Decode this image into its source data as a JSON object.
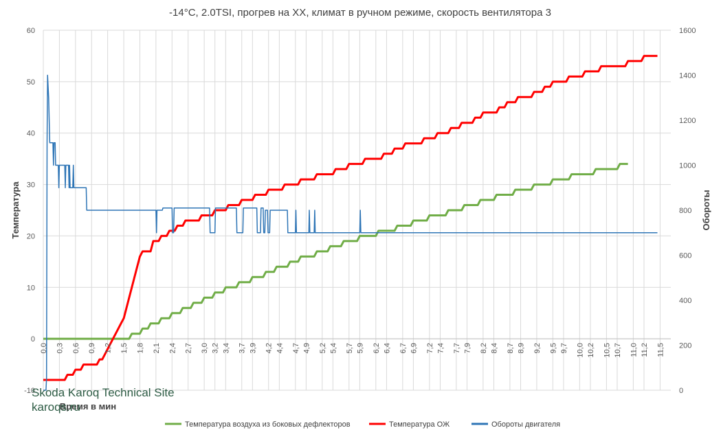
{
  "chart_data": {
    "type": "line",
    "title": "-14°C, 2.0TSI, прогрев на ХХ, климат в ручном режиме, скорость вентилятора 3",
    "xlabel": "Время в мин",
    "ylabel": "Температура",
    "y2label": "Обороты",
    "xlim": [
      0,
      11.7
    ],
    "ylim": [
      -10,
      60
    ],
    "y2lim": [
      0,
      1600
    ],
    "grid": true,
    "legend_position": "bottom",
    "x_ticks": [
      "0,0",
      "0,3",
      "0,5",
      "0,7",
      "0,9",
      "1,2",
      "1,4",
      "1,6",
      "1,9",
      "2,1",
      "2,3",
      "2,5",
      "2,7",
      "2,9",
      "3,1",
      "3,3",
      "3,5",
      "3,7",
      "3,9",
      "4,1",
      "4,3",
      "4,5",
      "4,7",
      "4,9",
      "5,1",
      "5,3",
      "5,5",
      "5,7",
      "5,9",
      "6,1",
      "6,3",
      "6,5",
      "6,7",
      "6,9",
      "7,1",
      "7,3",
      "7,5",
      "7,7",
      "7,9",
      "8,1",
      "8,3",
      "8,5",
      "8,7",
      "8,9",
      "9,1",
      "9,3",
      "9,5",
      "9,7",
      "9,9",
      "10,1",
      "10,3",
      "10,5",
      "10,7",
      "10,9",
      "11,1",
      "11,3",
      "11,5"
    ],
    "x_tick_labels": [
      "0,0",
      "0,3",
      "0,6",
      "0,9",
      "1,2",
      "1,5",
      "1,8",
      "2,1",
      "2,4",
      "2,7",
      "3,0",
      "3,2",
      "3,4",
      "3,7",
      "3,9",
      "4,2",
      "4,4",
      "4,7",
      "4,9",
      "5,2",
      "5,4",
      "5,7",
      "5,9",
      "6,2",
      "6,4",
      "6,7",
      "6,9",
      "7,2",
      "7,4",
      "7,7",
      "7,9",
      "8,2",
      "8,4",
      "8,7",
      "8,9",
      "9,2",
      "9,5",
      "9,7",
      "10,0",
      "10,2",
      "10,5",
      "10,7",
      "11,0",
      "11,2",
      "11,5"
    ],
    "x_tick_values": [
      0.0,
      0.3,
      0.6,
      0.9,
      1.2,
      1.5,
      1.8,
      2.1,
      2.4,
      2.7,
      3.0,
      3.2,
      3.4,
      3.7,
      3.9,
      4.2,
      4.4,
      4.7,
      4.9,
      5.2,
      5.4,
      5.7,
      5.9,
      6.2,
      6.4,
      6.7,
      6.9,
      7.2,
      7.4,
      7.7,
      7.9,
      8.2,
      8.4,
      8.7,
      8.9,
      9.2,
      9.5,
      9.7,
      10.0,
      10.2,
      10.5,
      10.7,
      11.0,
      11.2,
      11.5
    ],
    "y_ticks": [
      -10,
      0,
      10,
      20,
      30,
      40,
      50,
      60
    ],
    "y_tick_labels": [
      "-10",
      "0",
      "10",
      "20",
      "30",
      "40",
      "50",
      "60"
    ],
    "y2_ticks": [
      0,
      200,
      400,
      600,
      800,
      1000,
      1200,
      1400,
      1600
    ],
    "series": [
      {
        "name": "Температура воздуха из боковых дефлекторов",
        "axis": "left",
        "color": "#70ad47",
        "points": [
          [
            0.0,
            0
          ],
          [
            1.6,
            0
          ],
          [
            1.65,
            1
          ],
          [
            1.8,
            1
          ],
          [
            1.85,
            2
          ],
          [
            1.95,
            2
          ],
          [
            2.0,
            3
          ],
          [
            2.15,
            3
          ],
          [
            2.2,
            4
          ],
          [
            2.35,
            4
          ],
          [
            2.4,
            5
          ],
          [
            2.55,
            5
          ],
          [
            2.6,
            6
          ],
          [
            2.75,
            6
          ],
          [
            2.8,
            7
          ],
          [
            2.95,
            7
          ],
          [
            3.0,
            8
          ],
          [
            3.15,
            8
          ],
          [
            3.2,
            9
          ],
          [
            3.35,
            9
          ],
          [
            3.4,
            10
          ],
          [
            3.6,
            10
          ],
          [
            3.65,
            11
          ],
          [
            3.85,
            11
          ],
          [
            3.9,
            12
          ],
          [
            4.1,
            12
          ],
          [
            4.15,
            13
          ],
          [
            4.3,
            13
          ],
          [
            4.35,
            14
          ],
          [
            4.55,
            14
          ],
          [
            4.6,
            15
          ],
          [
            4.75,
            15
          ],
          [
            4.8,
            16
          ],
          [
            5.05,
            16
          ],
          [
            5.1,
            17
          ],
          [
            5.3,
            17
          ],
          [
            5.35,
            18
          ],
          [
            5.55,
            18
          ],
          [
            5.6,
            19
          ],
          [
            5.85,
            19
          ],
          [
            5.9,
            20
          ],
          [
            6.2,
            20
          ],
          [
            6.25,
            21
          ],
          [
            6.55,
            21
          ],
          [
            6.6,
            22
          ],
          [
            6.85,
            22
          ],
          [
            6.9,
            23
          ],
          [
            7.15,
            23
          ],
          [
            7.2,
            24
          ],
          [
            7.5,
            24
          ],
          [
            7.55,
            25
          ],
          [
            7.8,
            25
          ],
          [
            7.85,
            26
          ],
          [
            8.1,
            26
          ],
          [
            8.15,
            27
          ],
          [
            8.4,
            27
          ],
          [
            8.45,
            28
          ],
          [
            8.75,
            28
          ],
          [
            8.8,
            29
          ],
          [
            9.1,
            29
          ],
          [
            9.15,
            30
          ],
          [
            9.45,
            30
          ],
          [
            9.5,
            31
          ],
          [
            9.8,
            31
          ],
          [
            9.85,
            32
          ],
          [
            10.25,
            32
          ],
          [
            10.3,
            33
          ],
          [
            10.7,
            33
          ],
          [
            10.75,
            34
          ],
          [
            10.9,
            34
          ]
        ]
      },
      {
        "name": "Температура ОЖ",
        "axis": "left",
        "color": "#ff0000",
        "points": [
          [
            0.0,
            -8
          ],
          [
            0.4,
            -8
          ],
          [
            0.45,
            -7
          ],
          [
            0.55,
            -7
          ],
          [
            0.6,
            -6
          ],
          [
            0.7,
            -6
          ],
          [
            0.75,
            -5
          ],
          [
            1.0,
            -5
          ],
          [
            1.05,
            -4
          ],
          [
            1.1,
            -4
          ],
          [
            1.15,
            -3
          ],
          [
            1.2,
            -2
          ],
          [
            1.25,
            -1
          ],
          [
            1.3,
            0
          ],
          [
            1.35,
            1
          ],
          [
            1.4,
            2
          ],
          [
            1.45,
            3
          ],
          [
            1.5,
            4
          ],
          [
            1.55,
            6
          ],
          [
            1.6,
            8
          ],
          [
            1.65,
            10
          ],
          [
            1.7,
            12
          ],
          [
            1.75,
            14
          ],
          [
            1.8,
            16
          ],
          [
            1.85,
            17
          ],
          [
            2.0,
            17
          ],
          [
            2.05,
            19
          ],
          [
            2.15,
            19
          ],
          [
            2.2,
            20
          ],
          [
            2.3,
            20
          ],
          [
            2.35,
            21
          ],
          [
            2.45,
            21
          ],
          [
            2.5,
            22
          ],
          [
            2.6,
            22
          ],
          [
            2.65,
            23
          ],
          [
            2.9,
            23
          ],
          [
            2.95,
            24
          ],
          [
            3.15,
            24
          ],
          [
            3.2,
            25
          ],
          [
            3.4,
            25
          ],
          [
            3.45,
            26
          ],
          [
            3.65,
            26
          ],
          [
            3.7,
            27
          ],
          [
            3.9,
            27
          ],
          [
            3.95,
            28
          ],
          [
            4.15,
            28
          ],
          [
            4.2,
            29
          ],
          [
            4.45,
            29
          ],
          [
            4.5,
            30
          ],
          [
            4.75,
            30
          ],
          [
            4.8,
            31
          ],
          [
            5.05,
            31
          ],
          [
            5.1,
            32
          ],
          [
            5.4,
            32
          ],
          [
            5.45,
            33
          ],
          [
            5.65,
            33
          ],
          [
            5.7,
            34
          ],
          [
            5.95,
            34
          ],
          [
            6.0,
            35
          ],
          [
            6.3,
            35
          ],
          [
            6.35,
            36
          ],
          [
            6.5,
            36
          ],
          [
            6.55,
            37
          ],
          [
            6.7,
            37
          ],
          [
            6.75,
            38
          ],
          [
            7.05,
            38
          ],
          [
            7.1,
            39
          ],
          [
            7.3,
            39
          ],
          [
            7.35,
            40
          ],
          [
            7.55,
            40
          ],
          [
            7.6,
            41
          ],
          [
            7.75,
            41
          ],
          [
            7.8,
            42
          ],
          [
            8.0,
            42
          ],
          [
            8.05,
            43
          ],
          [
            8.15,
            43
          ],
          [
            8.2,
            44
          ],
          [
            8.45,
            44
          ],
          [
            8.5,
            45
          ],
          [
            8.6,
            45
          ],
          [
            8.65,
            46
          ],
          [
            8.8,
            46
          ],
          [
            8.85,
            47
          ],
          [
            9.1,
            47
          ],
          [
            9.15,
            48
          ],
          [
            9.3,
            48
          ],
          [
            9.35,
            49
          ],
          [
            9.45,
            49
          ],
          [
            9.5,
            50
          ],
          [
            9.75,
            50
          ],
          [
            9.8,
            51
          ],
          [
            10.05,
            51
          ],
          [
            10.1,
            52
          ],
          [
            10.35,
            52
          ],
          [
            10.4,
            53
          ],
          [
            10.85,
            53
          ],
          [
            10.9,
            54
          ],
          [
            11.15,
            54
          ],
          [
            11.2,
            55
          ],
          [
            11.45,
            55
          ]
        ]
      },
      {
        "name": "Обороты двигателя",
        "axis": "right",
        "color": "#2e75b6",
        "points": [
          [
            0.0,
            0
          ],
          [
            0.05,
            0
          ],
          [
            0.06,
            50
          ],
          [
            0.07,
            1100
          ],
          [
            0.08,
            1400
          ],
          [
            0.1,
            1300
          ],
          [
            0.12,
            1100
          ],
          [
            0.18,
            1100
          ],
          [
            0.19,
            1000
          ],
          [
            0.2,
            1100
          ],
          [
            0.22,
            1100
          ],
          [
            0.23,
            1000
          ],
          [
            0.28,
            1000
          ],
          [
            0.29,
            900
          ],
          [
            0.3,
            1000
          ],
          [
            0.4,
            1000
          ],
          [
            0.41,
            900
          ],
          [
            0.42,
            1000
          ],
          [
            0.47,
            1000
          ],
          [
            0.48,
            900
          ],
          [
            0.49,
            1000
          ],
          [
            0.5,
            900
          ],
          [
            0.55,
            900
          ],
          [
            0.56,
            1000
          ],
          [
            0.57,
            900
          ],
          [
            0.8,
            900
          ],
          [
            0.81,
            800
          ],
          [
            2.1,
            800
          ],
          [
            2.11,
            700
          ],
          [
            2.12,
            800
          ],
          [
            2.22,
            800
          ],
          [
            2.23,
            810
          ],
          [
            2.4,
            810
          ],
          [
            2.41,
            700
          ],
          [
            2.43,
            700
          ],
          [
            2.44,
            810
          ],
          [
            3.1,
            810
          ],
          [
            3.11,
            700
          ],
          [
            3.2,
            700
          ],
          [
            3.21,
            810
          ],
          [
            3.6,
            810
          ],
          [
            3.61,
            700
          ],
          [
            3.72,
            700
          ],
          [
            3.73,
            810
          ],
          [
            3.98,
            810
          ],
          [
            3.99,
            700
          ],
          [
            4.05,
            700
          ],
          [
            4.06,
            810
          ],
          [
            4.1,
            810
          ],
          [
            4.11,
            700
          ],
          [
            4.13,
            700
          ],
          [
            4.14,
            800
          ],
          [
            4.18,
            800
          ],
          [
            4.19,
            700
          ],
          [
            4.22,
            700
          ],
          [
            4.23,
            800
          ],
          [
            4.55,
            800
          ],
          [
            4.56,
            700
          ],
          [
            4.7,
            700
          ],
          [
            4.71,
            800
          ],
          [
            4.72,
            700
          ],
          [
            4.95,
            700
          ],
          [
            4.96,
            800
          ],
          [
            4.97,
            700
          ],
          [
            5.05,
            700
          ],
          [
            5.06,
            800
          ],
          [
            5.07,
            700
          ],
          [
            5.9,
            700
          ],
          [
            5.91,
            800
          ],
          [
            5.92,
            700
          ],
          [
            11.45,
            700
          ]
        ]
      }
    ]
  },
  "legend": {
    "items": [
      {
        "label": "Температура воздуха из боковых дефлекторов",
        "color": "#70ad47"
      },
      {
        "label": "Температура ОЖ",
        "color": "#ff0000"
      },
      {
        "label": "Обороты двигателя",
        "color": "#2e75b6"
      }
    ]
  },
  "watermark": {
    "line1": "Skoda Karoq Technical Site",
    "line2": "karoqs.ru"
  }
}
